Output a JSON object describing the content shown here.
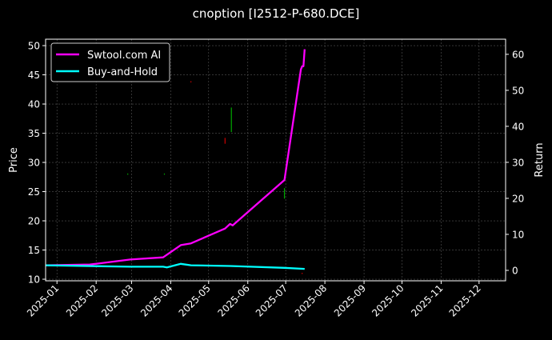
{
  "chart_data": {
    "type": "line",
    "title": "cnoption [I2512-P-680.DCE]",
    "ylabel_left": "Price",
    "ylabel_right": "Return",
    "xlim": [
      "2024-12-23",
      "2025-12-22"
    ],
    "ylim_left": [
      9.73,
      51.1
    ],
    "ylim_right": [
      -2.9,
      64.2
    ],
    "x_ticks": [
      "2025-01",
      "2025-02",
      "2025-03",
      "2025-04",
      "2025-05",
      "2025-06",
      "2025-07",
      "2025-08",
      "2025-09",
      "2025-10",
      "2025-11",
      "2025-12"
    ],
    "y_ticks_left": [
      10,
      15,
      20,
      25,
      30,
      35,
      40,
      45,
      50
    ],
    "y_ticks_right": [
      0,
      10,
      20,
      30,
      40,
      50,
      60
    ],
    "grid": true,
    "legend_position": "top-left",
    "background": "#000000",
    "series": [
      {
        "name": "Swtool.com AI",
        "axis": "right",
        "color": "#ff00ff",
        "points": [
          [
            "2024-12-23",
            1.4
          ],
          [
            "2025-01-27",
            1.6
          ],
          [
            "2025-02-28",
            3.0
          ],
          [
            "2025-03-26",
            3.6
          ],
          [
            "2025-04-09",
            7.0
          ],
          [
            "2025-04-17",
            7.5
          ],
          [
            "2025-05-14",
            11.6
          ],
          [
            "2025-05-18",
            12.9
          ],
          [
            "2025-05-20",
            12.5
          ],
          [
            "2025-06-30",
            25.1
          ],
          [
            "2025-07-13",
            55.8
          ],
          [
            "2025-07-14",
            56.7
          ],
          [
            "2025-07-15",
            56.7
          ],
          [
            "2025-07-16",
            61.4
          ]
        ]
      },
      {
        "name": "Buy-and-Hold",
        "axis": "right",
        "color": "#00ffff",
        "points": [
          [
            "2024-12-23",
            1.4
          ],
          [
            "2025-02-28",
            1.0
          ],
          [
            "2025-03-26",
            1.0
          ],
          [
            "2025-03-29",
            0.8
          ],
          [
            "2025-04-09",
            1.8
          ],
          [
            "2025-04-17",
            1.4
          ],
          [
            "2025-05-18",
            1.2
          ],
          [
            "2025-06-30",
            0.7
          ],
          [
            "2025-07-16",
            0.4
          ]
        ]
      }
    ],
    "candles": [
      {
        "date": "2025-02-26",
        "low": 27.9,
        "high": 28.1,
        "color": "#00aa00"
      },
      {
        "date": "2025-03-27",
        "low": 27.9,
        "high": 28.1,
        "color": "#00aa00"
      },
      {
        "date": "2025-04-17",
        "low": 43.7,
        "high": 43.9,
        "color": "#cc0000"
      },
      {
        "date": "2025-05-14",
        "low": 33.2,
        "high": 34.2,
        "color": "#cc0000"
      },
      {
        "date": "2025-05-19",
        "low": 35.2,
        "high": 39.4,
        "color": "#00aa00"
      },
      {
        "date": "2025-06-30",
        "low": 23.8,
        "high": 25.6,
        "color": "#00aa00"
      },
      {
        "date": "2025-07-14",
        "low": 10.9,
        "high": 11.1,
        "color": "#cc0000"
      }
    ]
  }
}
